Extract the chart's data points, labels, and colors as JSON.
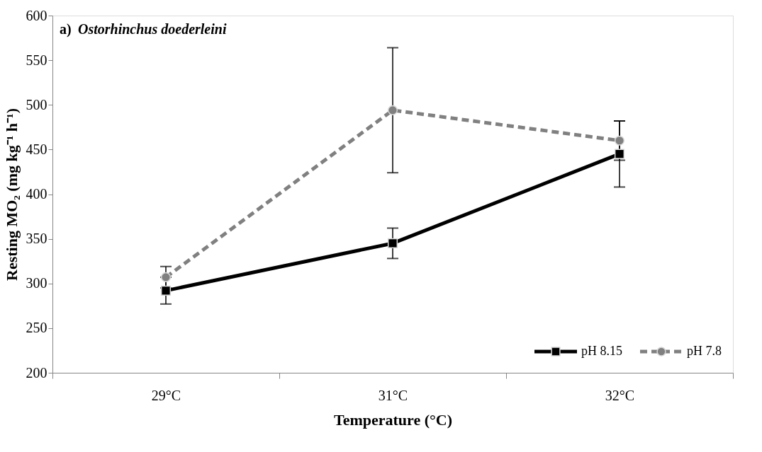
{
  "chart_data": {
    "type": "line",
    "title": "a) Ostorhinchus doederleini",
    "xlabel": "Temperature (°C)",
    "ylabel": "Resting MO₂ (mg kg⁻¹ h⁻¹)",
    "categories": [
      "29°C",
      "31°C",
      "32°C"
    ],
    "series": [
      {
        "name": "pH 8.15",
        "color": "#000000",
        "values": [
          292,
          345,
          445
        ],
        "errors": [
          15,
          17,
          37
        ],
        "marker": "square",
        "line_style": "solid"
      },
      {
        "name": "pH 7.8",
        "color": "#808080",
        "values": [
          307,
          494,
          460
        ],
        "errors": [
          12,
          70,
          22
        ],
        "marker": "circle",
        "line_style": "dashed"
      }
    ],
    "ylim": [
      200,
      600
    ],
    "yticks": [
      200,
      250,
      300,
      350,
      400,
      450,
      500,
      550,
      600
    ],
    "grid": false,
    "legend": "bottom right"
  }
}
